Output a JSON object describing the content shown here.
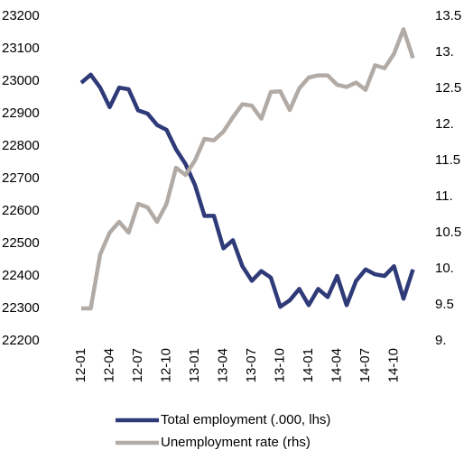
{
  "chart_data": {
    "type": "line",
    "categories": [
      "12-01",
      null,
      null,
      "12-04",
      null,
      null,
      "12-07",
      null,
      null,
      "12-10",
      null,
      null,
      "13-01",
      null,
      null,
      "13-04",
      null,
      null,
      "13-07",
      null,
      null,
      "13-10",
      null,
      null,
      "14-01",
      null,
      null,
      "14-04",
      null,
      null,
      "14-07",
      null,
      null,
      "14-10",
      null,
      null
    ],
    "series": [
      {
        "name": "Total employment (.000, lhs)",
        "color": "#2f3a78",
        "axis": "y",
        "values": [
          22995,
          23020,
          22980,
          22920,
          22980,
          22975,
          22910,
          22900,
          22865,
          22850,
          22790,
          22745,
          22680,
          22585,
          22585,
          22485,
          22510,
          22430,
          22385,
          22415,
          22395,
          22305,
          22325,
          22360,
          22310,
          22360,
          22335,
          22400,
          22310,
          22385,
          22420,
          22405,
          22400,
          22430,
          22330,
          22420
        ]
      },
      {
        "name": "Unemployment rate (rhs)",
        "color": "#b2aaa5",
        "axis": "y2",
        "values": [
          9.45,
          9.45,
          10.2,
          10.5,
          10.65,
          10.5,
          10.9,
          10.85,
          10.65,
          10.9,
          11.4,
          11.3,
          11.5,
          11.8,
          11.78,
          11.9,
          12.1,
          12.28,
          12.26,
          12.08,
          12.45,
          12.46,
          12.2,
          12.5,
          12.65,
          12.68,
          12.68,
          12.55,
          12.52,
          12.58,
          12.48,
          12.82,
          12.78,
          12.98,
          13.32,
          12.92
        ]
      }
    ],
    "ylim": [
      22200,
      23200
    ],
    "yticks": [
      22200,
      22300,
      22400,
      22500,
      22600,
      22700,
      22800,
      22900,
      23000,
      23100,
      23200
    ],
    "y2lim": [
      9,
      13.5
    ],
    "y2ticks": [
      {
        "value": 9,
        "label": "9."
      },
      9.5,
      {
        "value": 10,
        "label": "10."
      },
      10.5,
      {
        "value": 11,
        "label": "11."
      },
      11.5,
      {
        "value": 12,
        "label": "12."
      },
      12.5,
      {
        "value": 13,
        "label": "13."
      },
      13.5
    ],
    "legend": "bottom"
  }
}
